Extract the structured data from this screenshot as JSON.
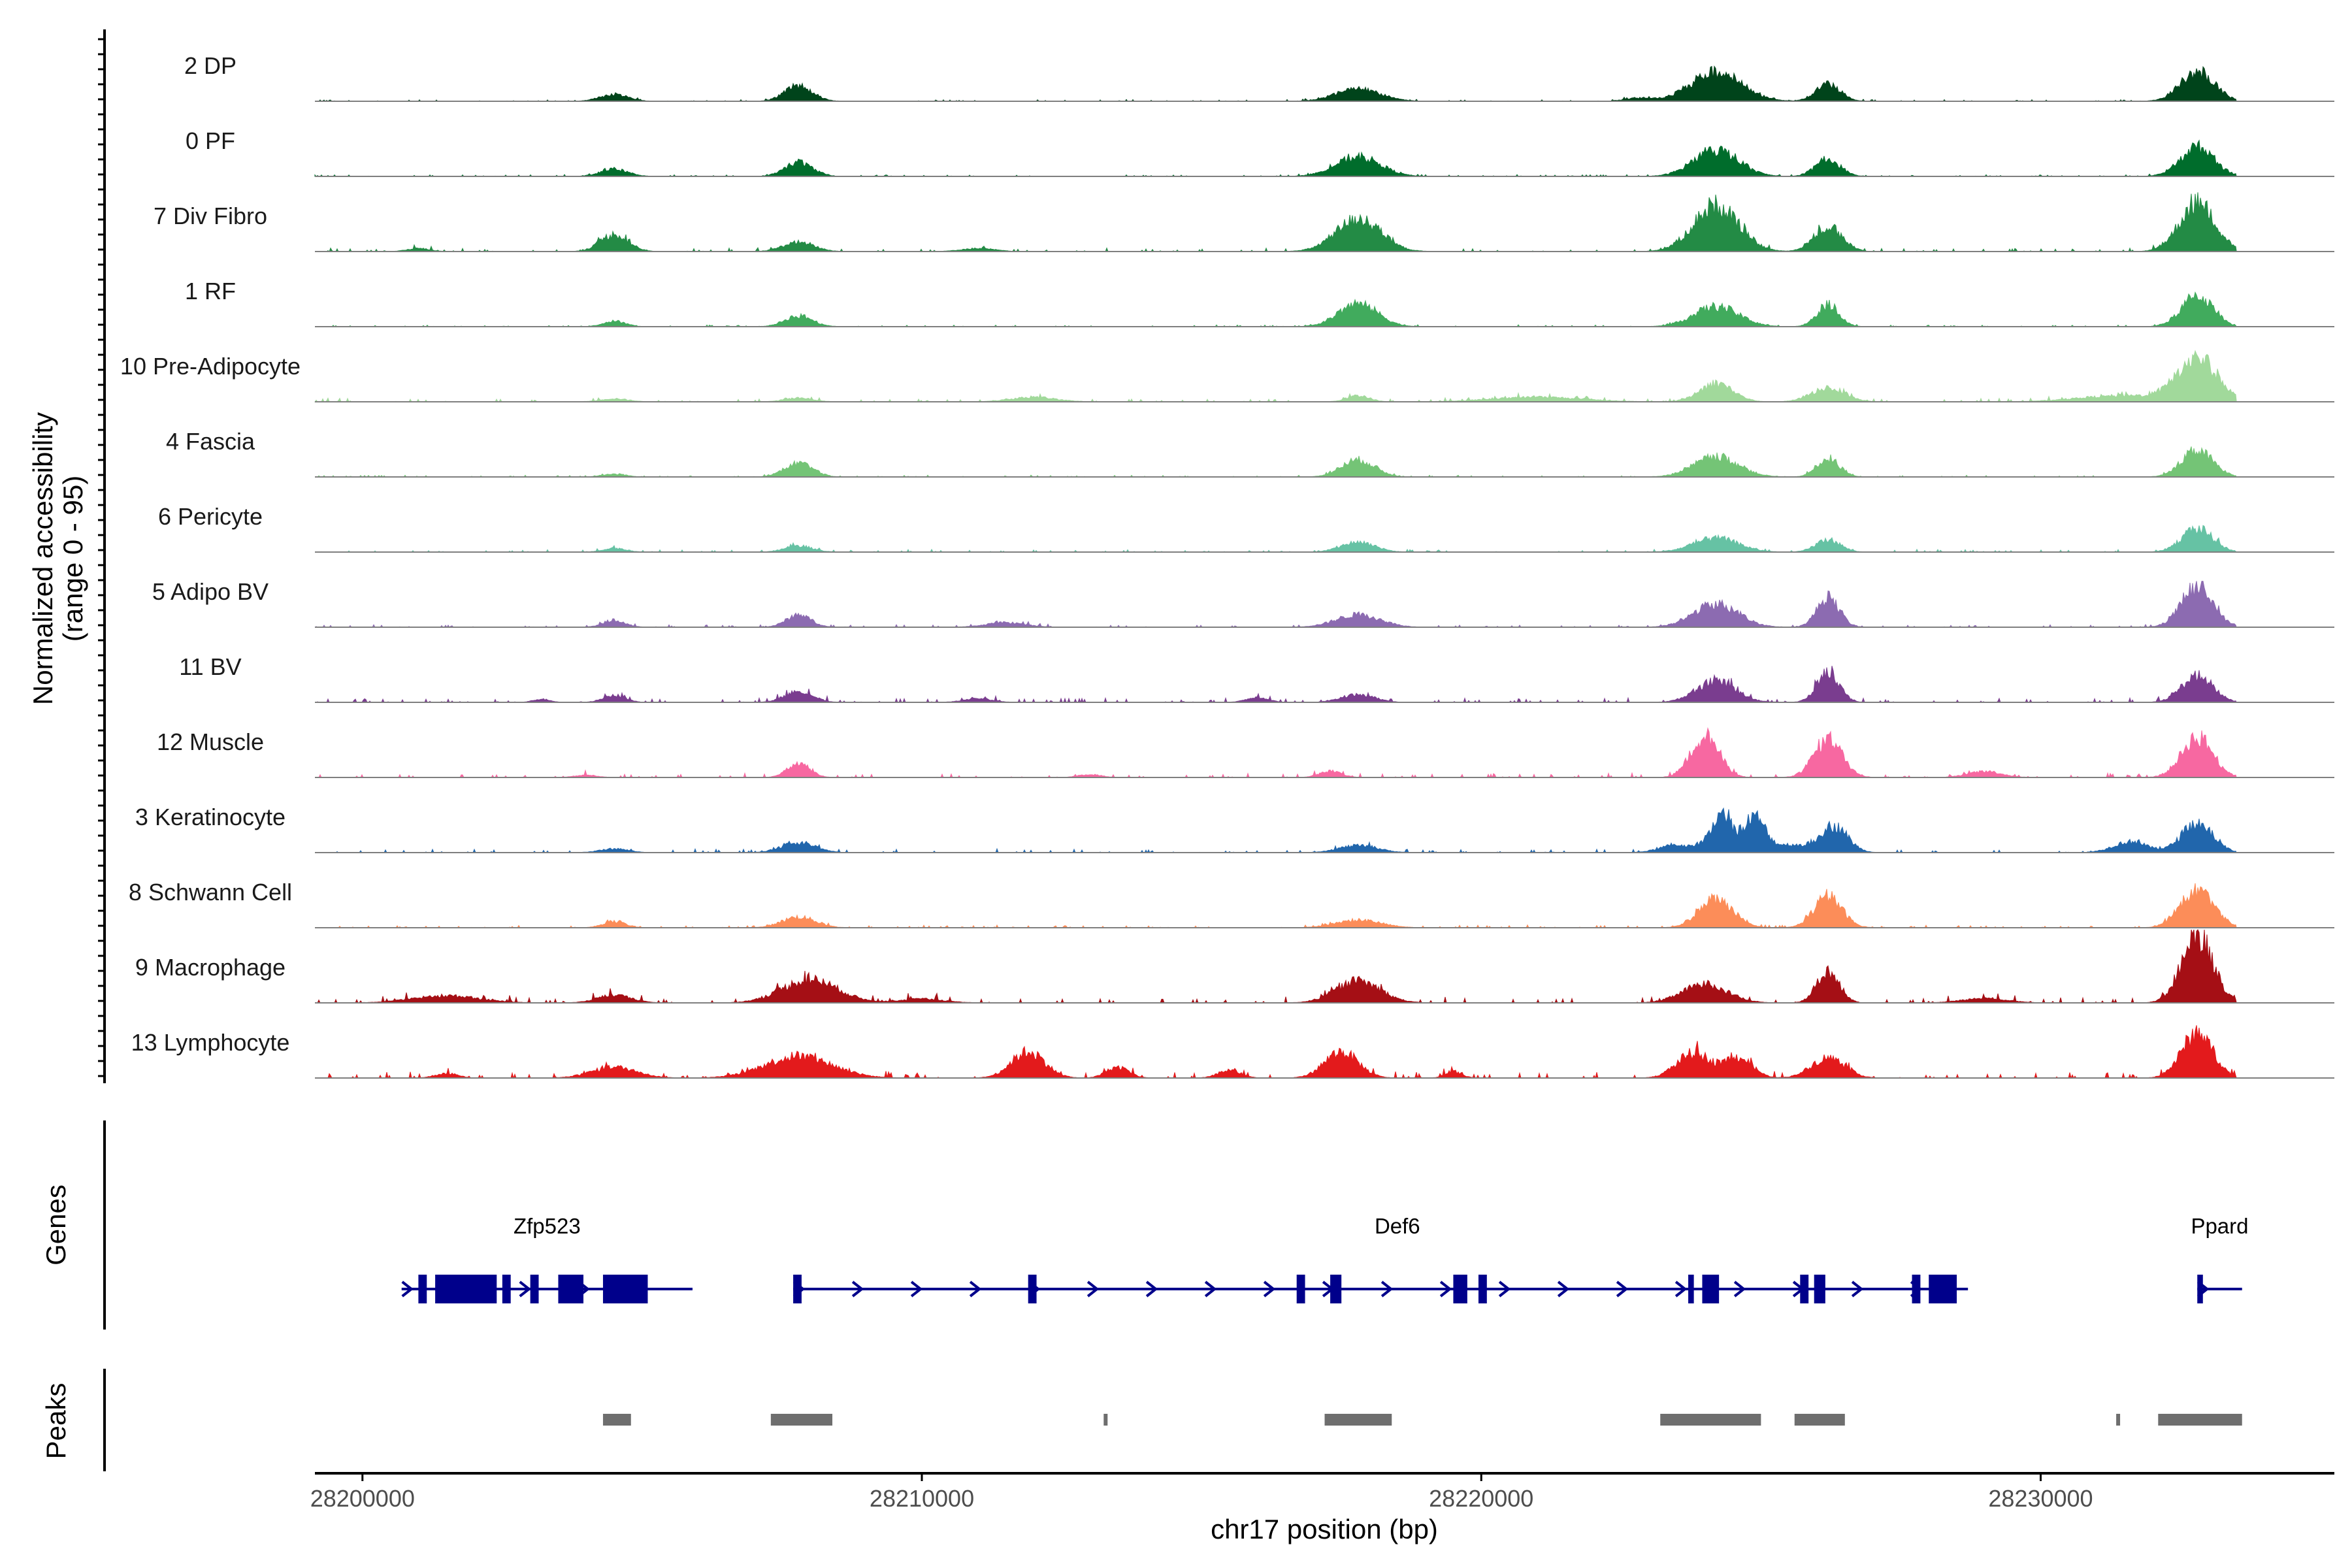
{
  "chart_data": {
    "type": "area",
    "ylabel": "Normalized accessibility\n(range 0 - 95)",
    "xlabel": "chr17 position (bp)",
    "xlim": [
      28199150,
      28235250
    ],
    "ylim": [
      0,
      95
    ],
    "x_ticks": [
      28200000,
      28210000,
      28220000,
      28230000
    ],
    "x_tick_labels": [
      "28200000",
      "28210000",
      "28220000",
      "28230000"
    ],
    "track_span": [
      28199150,
      28233500
    ],
    "tracks": [
      {
        "name": "2 DP",
        "color": "#00441b",
        "noise": 2,
        "peaks": [
          [
            28204500,
            9,
            250
          ],
          [
            28207800,
            20,
            250
          ],
          [
            28217800,
            16,
            400
          ],
          [
            28222800,
            4,
            250
          ],
          [
            28224200,
            38,
            450
          ],
          [
            28226200,
            22,
            220
          ],
          [
            28232800,
            38,
            300
          ]
        ]
      },
      {
        "name": "0 PF",
        "color": "#006d2c",
        "noise": 2,
        "peaks": [
          [
            28204500,
            9,
            250
          ],
          [
            28207800,
            18,
            250
          ],
          [
            28217800,
            25,
            400
          ],
          [
            28224200,
            34,
            400
          ],
          [
            28226200,
            22,
            220
          ],
          [
            28232800,
            38,
            300
          ]
        ]
      },
      {
        "name": "7 Div Fibro",
        "color": "#238b45",
        "noise": 4,
        "peaks": [
          [
            28201000,
            4,
            200
          ],
          [
            28204500,
            22,
            250
          ],
          [
            28207800,
            12,
            280
          ],
          [
            28211000,
            4,
            300
          ],
          [
            28217800,
            42,
            400
          ],
          [
            28224200,
            60,
            400
          ],
          [
            28226200,
            32,
            250
          ],
          [
            28232800,
            62,
            320
          ]
        ]
      },
      {
        "name": "1 RF",
        "color": "#41ab5d",
        "noise": 2,
        "peaks": [
          [
            28204500,
            7,
            200
          ],
          [
            28207800,
            14,
            250
          ],
          [
            28217800,
            30,
            350
          ],
          [
            28224200,
            26,
            400
          ],
          [
            28226200,
            28,
            200
          ],
          [
            28232800,
            40,
            280
          ]
        ]
      },
      {
        "name": "10 Pre-Adipocyte",
        "color": "#a1d99b",
        "noise": 4,
        "peaks": [
          [
            28204500,
            4,
            250
          ],
          [
            28207800,
            5,
            250
          ],
          [
            28212000,
            6,
            400
          ],
          [
            28217800,
            8,
            200
          ],
          [
            28221000,
            6,
            800
          ],
          [
            28224200,
            24,
            300
          ],
          [
            28226200,
            18,
            300
          ],
          [
            28231500,
            8,
            800
          ],
          [
            28232800,
            55,
            350
          ]
        ]
      },
      {
        "name": "4 Fascia",
        "color": "#74c476",
        "noise": 2,
        "peaks": [
          [
            28204500,
            4,
            200
          ],
          [
            28207800,
            18,
            250
          ],
          [
            28217800,
            22,
            300
          ],
          [
            28224200,
            26,
            400
          ],
          [
            28226200,
            24,
            200
          ],
          [
            28232800,
            34,
            280
          ]
        ]
      },
      {
        "name": "6 Pericyte",
        "color": "#66c2a4",
        "noise": 3,
        "peaks": [
          [
            28204500,
            5,
            200
          ],
          [
            28207800,
            8,
            250
          ],
          [
            28217800,
            13,
            300
          ],
          [
            28224200,
            18,
            400
          ],
          [
            28226200,
            16,
            220
          ],
          [
            28232800,
            30,
            280
          ]
        ]
      },
      {
        "name": "5 Adipo BV",
        "color": "#8c6bb1",
        "noise": 3,
        "peaks": [
          [
            28204500,
            9,
            200
          ],
          [
            28207800,
            16,
            220
          ],
          [
            28211500,
            6,
            350
          ],
          [
            28217800,
            16,
            400
          ],
          [
            28224200,
            30,
            400
          ],
          [
            28226200,
            38,
            200
          ],
          [
            28232800,
            52,
            280
          ]
        ]
      },
      {
        "name": "11 BV",
        "color": "#7a3d8f",
        "noise": 5,
        "peaks": [
          [
            28203200,
            4,
            150
          ],
          [
            28204500,
            9,
            200
          ],
          [
            28207800,
            14,
            250
          ],
          [
            28211000,
            5,
            250
          ],
          [
            28216000,
            6,
            200
          ],
          [
            28217800,
            10,
            300
          ],
          [
            28224200,
            28,
            350
          ],
          [
            28226200,
            38,
            200
          ],
          [
            28232800,
            34,
            280
          ]
        ]
      },
      {
        "name": "12 Muscle",
        "color": "#f768a1",
        "noise": 5,
        "peaks": [
          [
            28204000,
            3,
            200
          ],
          [
            28207800,
            18,
            200
          ],
          [
            28213000,
            4,
            200
          ],
          [
            28217300,
            8,
            200
          ],
          [
            28224000,
            54,
            250
          ],
          [
            28226200,
            50,
            250
          ],
          [
            28229000,
            8,
            300
          ],
          [
            28232800,
            52,
            280
          ]
        ]
      },
      {
        "name": "3 Keratinocyte",
        "color": "#2166ac",
        "noise": 4,
        "peaks": [
          [
            28204500,
            5,
            250
          ],
          [
            28207800,
            13,
            300
          ],
          [
            28217800,
            9,
            350
          ],
          [
            28223500,
            10,
            300
          ],
          [
            28224300,
            50,
            200
          ],
          [
            28224900,
            44,
            180
          ],
          [
            28225500,
            10,
            300
          ],
          [
            28226300,
            34,
            250
          ],
          [
            28231600,
            14,
            300
          ],
          [
            28232800,
            38,
            280
          ]
        ]
      },
      {
        "name": "8 Schwann Cell",
        "color": "#fc8d59",
        "noise": 3,
        "peaks": [
          [
            28204500,
            8,
            200
          ],
          [
            28207800,
            14,
            300
          ],
          [
            28217800,
            10,
            400
          ],
          [
            28224200,
            38,
            300
          ],
          [
            28226200,
            40,
            250
          ],
          [
            28232800,
            48,
            300
          ]
        ]
      },
      {
        "name": "9 Macrophage",
        "color": "#a50f15",
        "noise": 7,
        "peaks": [
          [
            28201500,
            9,
            600
          ],
          [
            28204500,
            10,
            300
          ],
          [
            28208000,
            30,
            500
          ],
          [
            28210000,
            5,
            400
          ],
          [
            28217800,
            28,
            400
          ],
          [
            28224000,
            24,
            400
          ],
          [
            28226200,
            40,
            200
          ],
          [
            28229000,
            6,
            400
          ],
          [
            28232800,
            88,
            280
          ]
        ]
      },
      {
        "name": "13 Lymphocyte",
        "color": "#e31a1c",
        "noise": 7,
        "peaks": [
          [
            28201500,
            6,
            200
          ],
          [
            28204500,
            14,
            400
          ],
          [
            28207800,
            28,
            600
          ],
          [
            28211900,
            34,
            300
          ],
          [
            28213500,
            14,
            200
          ],
          [
            28215500,
            10,
            200
          ],
          [
            28217500,
            34,
            300
          ],
          [
            28219500,
            8,
            150
          ],
          [
            28223800,
            32,
            300
          ],
          [
            28224600,
            26,
            250
          ],
          [
            28226200,
            26,
            300
          ],
          [
            28232800,
            58,
            280
          ]
        ]
      }
    ],
    "genes": [
      {
        "name": "Zfp523",
        "start": 28200700,
        "end": 28205900,
        "label_at": 28203300,
        "exons": [
          [
            28201000,
            28201150
          ],
          [
            28201300,
            28202400
          ],
          [
            28202500,
            28202650
          ],
          [
            28203000,
            28203150
          ],
          [
            28203500,
            28203950
          ],
          [
            28204300,
            28205100
          ]
        ]
      },
      {
        "name": "Def6",
        "start": 28207700,
        "end": 28228700,
        "label_at": 28218500,
        "exons": [
          [
            28207700,
            28207850
          ],
          [
            28211900,
            28212050
          ],
          [
            28216700,
            28216850
          ],
          [
            28217300,
            28217500
          ],
          [
            28219500,
            28219750
          ],
          [
            28219950,
            28220100
          ],
          [
            28223700,
            28223800
          ],
          [
            28223950,
            28224250
          ],
          [
            28225700,
            28225850
          ],
          [
            28225950,
            28226150
          ],
          [
            28227700,
            28227850
          ],
          [
            28228000,
            28228500
          ]
        ]
      },
      {
        "name": "Ppard",
        "start": 28232800,
        "end": 28233600,
        "label_at": 28233200,
        "exons": [
          [
            28232800,
            28232900
          ]
        ]
      }
    ],
    "peaks_track": [
      [
        28204300,
        28204800
      ],
      [
        28207300,
        28208400
      ],
      [
        28213250,
        28213320
      ],
      [
        28217200,
        28218400
      ],
      [
        28223200,
        28225000
      ],
      [
        28225600,
        28226500
      ],
      [
        28231350,
        28231420
      ],
      [
        28232100,
        28233600
      ]
    ],
    "panel_labels": [
      "Genes",
      "Peaks"
    ]
  }
}
